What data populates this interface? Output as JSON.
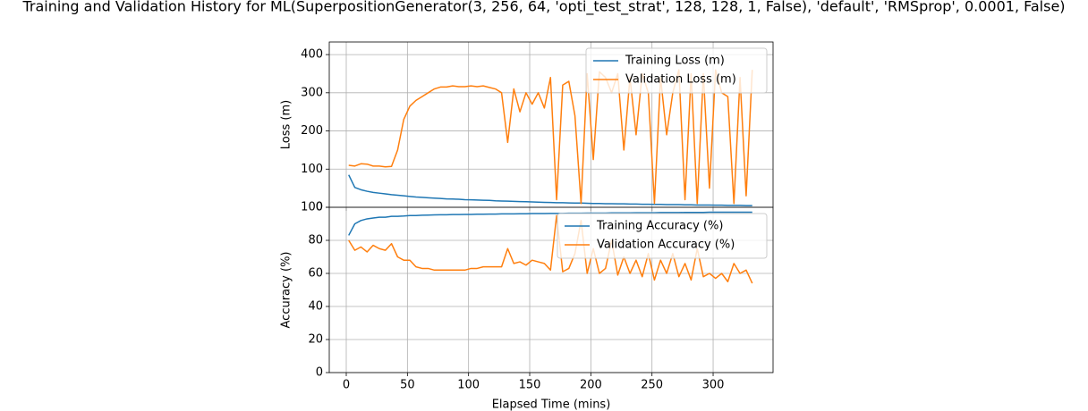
{
  "chart_data": [
    {
      "type": "line",
      "title": "Training and Validation History for ML(SuperpositionGenerator(3, 256, 64, 'opti_test_strat', 128, 128, 1, False), 'default', 'RMSprop', 0.0001, False)",
      "ylabel": "Loss (m)",
      "x": [
        2,
        7,
        12,
        17,
        22,
        27,
        32,
        37,
        42,
        47,
        52,
        57,
        62,
        67,
        72,
        77,
        82,
        87,
        92,
        97,
        102,
        107,
        112,
        117,
        122,
        127,
        132,
        137,
        142,
        147,
        152,
        157,
        162,
        167,
        172,
        177,
        182,
        187,
        192,
        197,
        202,
        207,
        212,
        217,
        222,
        227,
        232,
        237,
        242,
        247,
        252,
        257,
        262,
        267,
        272,
        277,
        282,
        287,
        292,
        297,
        302,
        307,
        312,
        317,
        322,
        327,
        332
      ],
      "series": [
        {
          "name": "Training Loss (m)",
          "color": "#1f77b4",
          "values": [
            85,
            52,
            46,
            42,
            39,
            37,
            35,
            33,
            31.5,
            30,
            28.5,
            27,
            26,
            25,
            24,
            23,
            22,
            21.5,
            21,
            20,
            19.5,
            19,
            18.5,
            18,
            17,
            16.5,
            16,
            15.5,
            15,
            14.5,
            14,
            13.5,
            13,
            12.5,
            12,
            12,
            11.5,
            11,
            11,
            10.5,
            10,
            10,
            9.5,
            9.5,
            9,
            9,
            8.5,
            8.5,
            8,
            8,
            7.5,
            7.5,
            7,
            7,
            7,
            6.5,
            6.5,
            6,
            6,
            6,
            5.5,
            5.5,
            5,
            5,
            5,
            4.5,
            4.5
          ]
        },
        {
          "name": "Validation Loss (m)",
          "color": "#ff7f0e",
          "values": [
            110,
            108,
            114,
            113,
            108,
            108,
            106,
            107,
            150,
            230,
            265,
            280,
            290,
            300,
            310,
            315,
            315,
            318,
            316,
            316,
            318,
            316,
            318,
            314,
            310,
            300,
            170,
            310,
            250,
            300,
            270,
            300,
            260,
            340,
            20,
            320,
            330,
            240,
            10,
            350,
            125,
            355,
            340,
            300,
            350,
            150,
            340,
            190,
            350,
            300,
            10,
            340,
            190,
            300,
            360,
            20,
            350,
            10,
            350,
            50,
            360,
            300,
            290,
            10,
            340,
            30,
            360
          ]
        }
      ],
      "xlim": [
        -13.9,
        349
      ],
      "xticks": [
        0,
        50,
        100,
        150,
        200,
        250,
        300
      ],
      "ylim": [
        0,
        433
      ],
      "yticks": [
        0,
        100,
        200,
        300,
        400
      ],
      "grid": true,
      "legend": "upper-right"
    },
    {
      "type": "line",
      "xlabel": "Elapsed Time (mins)",
      "ylabel": "Accuracy (%)",
      "x": [
        2,
        7,
        12,
        17,
        22,
        27,
        32,
        37,
        42,
        47,
        52,
        57,
        62,
        67,
        72,
        77,
        82,
        87,
        92,
        97,
        102,
        107,
        112,
        117,
        122,
        127,
        132,
        137,
        142,
        147,
        152,
        157,
        162,
        167,
        172,
        177,
        182,
        187,
        192,
        197,
        202,
        207,
        212,
        217,
        222,
        227,
        232,
        237,
        242,
        247,
        252,
        257,
        262,
        267,
        272,
        277,
        282,
        287,
        292,
        297,
        302,
        307,
        312,
        317,
        322,
        327,
        332
      ],
      "series": [
        {
          "name": "Training Accuracy (%)",
          "color": "#1f77b4",
          "values": [
            83,
            90,
            92,
            93,
            93.5,
            94,
            94,
            94.5,
            94.5,
            94.7,
            95,
            95,
            95.2,
            95.3,
            95.4,
            95.5,
            95.5,
            95.6,
            95.6,
            95.7,
            95.7,
            95.8,
            95.8,
            95.9,
            95.9,
            96,
            96,
            96,
            96.1,
            96.1,
            96.2,
            96.2,
            96.2,
            96.3,
            96.3,
            96.3,
            96.4,
            96.4,
            96.4,
            96.5,
            96.5,
            96.5,
            96.5,
            96.6,
            96.6,
            96.6,
            96.6,
            96.7,
            96.7,
            96.7,
            96.7,
            96.8,
            96.8,
            96.8,
            96.8,
            96.9,
            96.9,
            96.9,
            96.9,
            97,
            97,
            97,
            97,
            97,
            97,
            97,
            97
          ]
        },
        {
          "name": "Validation Accuracy (%)",
          "color": "#ff7f0e",
          "values": [
            80,
            74,
            76,
            73,
            77,
            75,
            74,
            78,
            70,
            68,
            68,
            64,
            63,
            63,
            62,
            62,
            62,
            62,
            62,
            62,
            63,
            63,
            64,
            64,
            64,
            64,
            75,
            66,
            67,
            65,
            68,
            67,
            66,
            62,
            95,
            61,
            63,
            72,
            92,
            60,
            75,
            60,
            63,
            80,
            59,
            70,
            60,
            68,
            58,
            72,
            56,
            68,
            60,
            72,
            58,
            66,
            56,
            75,
            58,
            60,
            57,
            60,
            55,
            66,
            60,
            62,
            54
          ]
        }
      ],
      "xlim": [
        -13.9,
        349
      ],
      "xticks": [
        0,
        50,
        100,
        150,
        200,
        250,
        300
      ],
      "ylim": [
        0,
        100
      ],
      "yticks": [
        0,
        20,
        40,
        60,
        80,
        100
      ],
      "grid": true,
      "legend": "upper-right"
    }
  ]
}
